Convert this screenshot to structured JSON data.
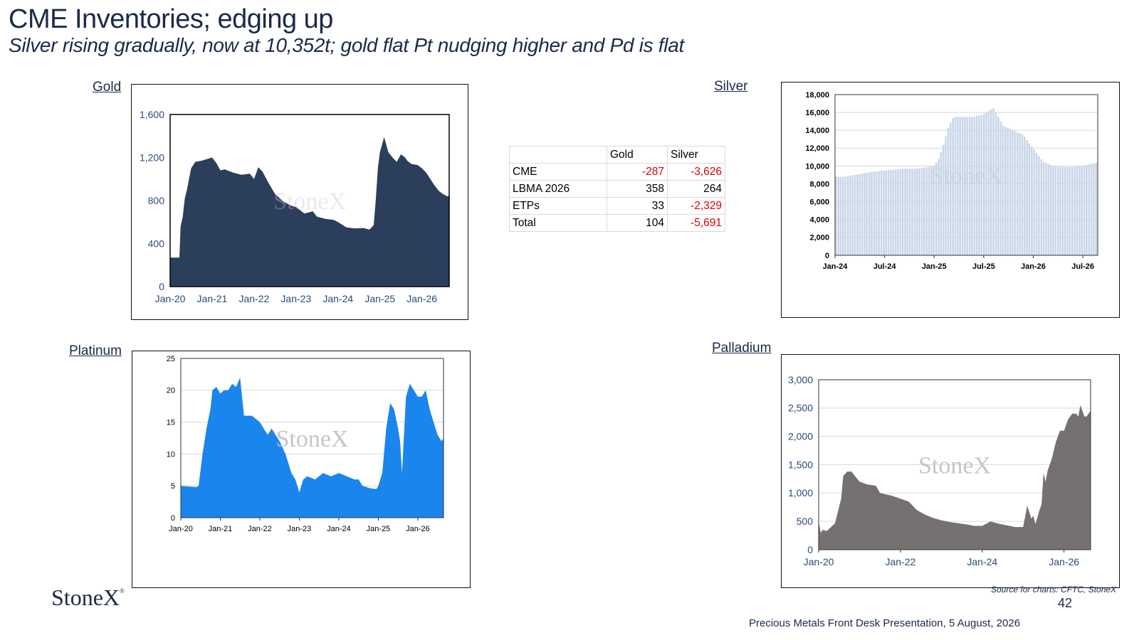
{
  "header": {
    "title": "CME Inventories; edging up",
    "subtitle": "Silver rising gradually, now at 10,352t; gold flat Pt nudging higher and Pd is flat"
  },
  "labels": {
    "gold": "Gold",
    "silver": "Silver",
    "platinum": "Platinum",
    "palladium": "Palladium"
  },
  "watermark": "StoneX",
  "table": {
    "headers": [
      "",
      "Gold",
      "Silver"
    ],
    "rows": [
      {
        "label": "CME",
        "gold": "-287",
        "silver": "-3,626",
        "gold_neg": true,
        "silver_neg": true
      },
      {
        "label": "LBMA 2026",
        "gold": "358",
        "silver": "264",
        "gold_neg": false,
        "silver_neg": false
      },
      {
        "label": "ETPs",
        "gold": "33",
        "silver": "-2,329",
        "gold_neg": false,
        "silver_neg": true
      },
      {
        "label": "Total",
        "gold": "104",
        "silver": "-5,691",
        "gold_neg": false,
        "silver_neg": true
      }
    ]
  },
  "footer": {
    "logo": "StoneX",
    "source": "Source for charts: CFTC, StoneX",
    "page_number": "42",
    "presentation": "Precious Metals Front Desk Presentation, 5 August, 2026"
  },
  "colors": {
    "gold": "#2b3f5c",
    "silver": "#c8d6e8",
    "platinum": "#1a85ec",
    "palladium": "#757170",
    "negative": "#e00000",
    "text": "#1b2a4a"
  },
  "chart_data": [
    {
      "id": "gold",
      "type": "area",
      "title": "Gold",
      "x_ticks": [
        "Jan-20",
        "Jan-21",
        "Jan-22",
        "Jan-23",
        "Jan-24",
        "Jan-25",
        "Jan-26"
      ],
      "y_ticks": [
        "0",
        "400",
        "800",
        "1,200",
        "1,600"
      ],
      "ylim": [
        0,
        1600
      ],
      "xlim": [
        2020.0,
        2026.65
      ],
      "grid": false,
      "x": [
        2020.0,
        2020.22,
        2020.25,
        2020.3,
        2020.35,
        2020.4,
        2020.45,
        2020.5,
        2020.6,
        2020.75,
        2021.0,
        2021.1,
        2021.2,
        2021.3,
        2021.5,
        2021.7,
        2021.9,
        2022.0,
        2022.1,
        2022.2,
        2022.35,
        2022.5,
        2022.7,
        2022.9,
        2023.0,
        2023.2,
        2023.4,
        2023.5,
        2023.7,
        2023.9,
        2024.0,
        2024.2,
        2024.4,
        2024.6,
        2024.75,
        2024.85,
        2024.9,
        2024.95,
        2025.0,
        2025.1,
        2025.2,
        2025.3,
        2025.4,
        2025.5,
        2025.6,
        2025.65,
        2025.75,
        2025.9,
        2026.0,
        2026.1,
        2026.2,
        2026.3,
        2026.4,
        2026.5,
        2026.6,
        2026.65
      ],
      "values": [
        270,
        270,
        560,
        650,
        820,
        900,
        1000,
        1100,
        1160,
        1170,
        1200,
        1150,
        1080,
        1090,
        1060,
        1040,
        1050,
        1000,
        1110,
        1070,
        960,
        860,
        790,
        750,
        740,
        680,
        700,
        650,
        630,
        620,
        600,
        550,
        540,
        545,
        530,
        570,
        800,
        1100,
        1250,
        1390,
        1250,
        1200,
        1160,
        1230,
        1200,
        1170,
        1140,
        1130,
        1100,
        1060,
        1000,
        940,
        890,
        860,
        840,
        840
      ]
    },
    {
      "id": "silver",
      "type": "bar",
      "title": "Silver",
      "x_ticks": [
        "Jan-24",
        "Jul-24",
        "Jan-25",
        "Jul-25",
        "Jan-26",
        "Jul-26"
      ],
      "y_ticks": [
        "0",
        "2,000",
        "4,000",
        "6,000",
        "8,000",
        "10,000",
        "12,000",
        "14,000",
        "16,000",
        "18,000"
      ],
      "ylim": [
        0,
        18000
      ],
      "xlim": [
        2024.0,
        2026.65
      ],
      "grid": true,
      "x": [
        2024.0,
        2024.1,
        2024.2,
        2024.3,
        2024.4,
        2024.5,
        2024.6,
        2024.7,
        2024.8,
        2024.9,
        2025.0,
        2025.05,
        2025.1,
        2025.15,
        2025.2,
        2025.3,
        2025.4,
        2025.5,
        2025.6,
        2025.7,
        2025.8,
        2025.9,
        2026.0,
        2026.1,
        2026.2,
        2026.3,
        2026.4,
        2026.5,
        2026.6,
        2026.65
      ],
      "values": [
        8800,
        8800,
        9000,
        9200,
        9400,
        9500,
        9600,
        9700,
        9700,
        9800,
        10000,
        10800,
        12500,
        14500,
        15500,
        15500,
        15500,
        15800,
        16500,
        14500,
        14000,
        13500,
        12000,
        10500,
        10000,
        9900,
        9900,
        10000,
        10300,
        10352
      ]
    },
    {
      "id": "platinum",
      "type": "area",
      "title": "Platinum",
      "x_ticks": [
        "Jan-20",
        "Jan-21",
        "Jan-22",
        "Jan-23",
        "Jan-24",
        "Jan-25",
        "Jan-26"
      ],
      "y_ticks": [
        "0",
        "5",
        "10",
        "15",
        "20",
        "25"
      ],
      "ylim": [
        0,
        25
      ],
      "xlim": [
        2020.0,
        2026.65
      ],
      "grid": true,
      "x": [
        2020.0,
        2020.4,
        2020.45,
        2020.55,
        2020.65,
        2020.75,
        2020.8,
        2020.9,
        2021.0,
        2021.1,
        2021.2,
        2021.3,
        2021.4,
        2021.5,
        2021.6,
        2021.8,
        2022.0,
        2022.1,
        2022.2,
        2022.3,
        2022.5,
        2022.65,
        2022.8,
        2022.9,
        2023.0,
        2023.1,
        2023.2,
        2023.4,
        2023.6,
        2023.8,
        2024.0,
        2024.2,
        2024.4,
        2024.5,
        2024.6,
        2024.7,
        2024.8,
        2024.95,
        2025.0,
        2025.1,
        2025.2,
        2025.3,
        2025.4,
        2025.5,
        2025.55,
        2025.6,
        2025.7,
        2025.8,
        2025.9,
        2026.0,
        2026.1,
        2026.2,
        2026.3,
        2026.4,
        2026.5,
        2026.6,
        2026.65
      ],
      "values": [
        5,
        4.8,
        5,
        10,
        14,
        17,
        20,
        20.5,
        19.5,
        20,
        20,
        21,
        20.5,
        22,
        16,
        16,
        15,
        14,
        13,
        14,
        12,
        10,
        7,
        6,
        4,
        6,
        6.5,
        6,
        7,
        6.5,
        7,
        6.5,
        6,
        6,
        5,
        4.8,
        4.6,
        4.5,
        5,
        7,
        14,
        18,
        17,
        14,
        12,
        7,
        19,
        21,
        20,
        19,
        19,
        20,
        17,
        15,
        13,
        12,
        12.5
      ]
    },
    {
      "id": "palladium",
      "type": "area",
      "title": "Palladium",
      "x_ticks": [
        "Jan-20",
        "Jan-22",
        "Jan-24",
        "Jan-26"
      ],
      "y_ticks": [
        "0",
        "500",
        "1,000",
        "1,500",
        "2,000",
        "2,500",
        "3,000"
      ],
      "ylim": [
        0,
        3000
      ],
      "xlim": [
        2020.0,
        2026.65
      ],
      "grid": true,
      "x": [
        2020.0,
        2020.05,
        2020.1,
        2020.2,
        2020.4,
        2020.55,
        2020.6,
        2020.7,
        2020.8,
        2021.0,
        2021.2,
        2021.4,
        2021.5,
        2021.8,
        2022.0,
        2022.2,
        2022.4,
        2022.6,
        2022.8,
        2023.0,
        2023.2,
        2023.4,
        2023.6,
        2023.8,
        2024.0,
        2024.2,
        2024.4,
        2024.6,
        2024.8,
        2025.0,
        2025.1,
        2025.2,
        2025.25,
        2025.3,
        2025.4,
        2025.45,
        2025.5,
        2025.55,
        2025.6,
        2025.7,
        2025.8,
        2025.9,
        2026.0,
        2026.1,
        2026.2,
        2026.3,
        2026.35,
        2026.4,
        2026.5,
        2026.55,
        2026.6,
        2026.65
      ],
      "values": [
        500,
        300,
        350,
        330,
        470,
        900,
        1300,
        1380,
        1380,
        1200,
        1150,
        1130,
        1000,
        950,
        900,
        850,
        700,
        620,
        560,
        520,
        490,
        470,
        450,
        420,
        420,
        500,
        460,
        430,
        400,
        400,
        780,
        550,
        600,
        450,
        700,
        800,
        1350,
        1200,
        1400,
        1600,
        1900,
        2100,
        2100,
        2300,
        2400,
        2400,
        2350,
        2550,
        2350,
        2350,
        2400,
        2450
      ]
    }
  ]
}
